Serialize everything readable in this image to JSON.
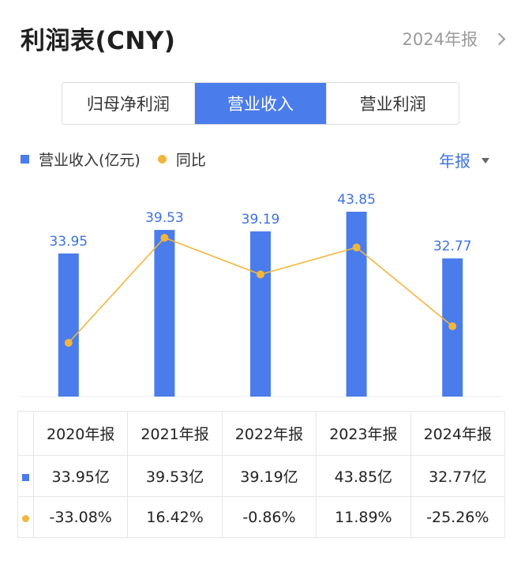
{
  "header": {
    "title": "利润表(CNY)",
    "period_link": "2024年报"
  },
  "tabs": [
    {
      "label": "归母净利润",
      "active": false
    },
    {
      "label": "营业收入",
      "active": true
    },
    {
      "label": "营业利润",
      "active": false
    }
  ],
  "legend": {
    "bar_label": "营业收入(亿元)",
    "line_label": "同比"
  },
  "period_select": {
    "label": "年报"
  },
  "colors": {
    "bar": "#4a7cec",
    "line": "#f2b63c",
    "positive": "#e24b4b",
    "negative": "#2fa56a",
    "accent": "#3d72e0"
  },
  "chart_data": {
    "type": "bar",
    "categories": [
      "2020年报",
      "2021年报",
      "2022年报",
      "2023年报",
      "2024年报"
    ],
    "series": [
      {
        "name": "营业收入(亿元)",
        "type": "bar",
        "values": [
          33.95,
          39.53,
          39.19,
          43.85,
          32.77
        ],
        "labels": [
          "33.95",
          "39.53",
          "39.19",
          "43.85",
          "32.77"
        ]
      },
      {
        "name": "同比",
        "type": "line",
        "values": [
          -33.08,
          16.42,
          -0.86,
          11.89,
          -25.26
        ]
      }
    ],
    "ylim": [
      0,
      43.85
    ],
    "line_ylim": [
      -33.08,
      16.42
    ],
    "legend": "top-left"
  },
  "table": {
    "headers": [
      "2020年报",
      "2021年报",
      "2022年报",
      "2023年报",
      "2024年报"
    ],
    "revenue": [
      "33.95亿",
      "39.53亿",
      "39.19亿",
      "43.85亿",
      "32.77亿"
    ],
    "yoy": [
      "-33.08%",
      "16.42%",
      "-0.86%",
      "11.89%",
      "-25.26%"
    ]
  }
}
